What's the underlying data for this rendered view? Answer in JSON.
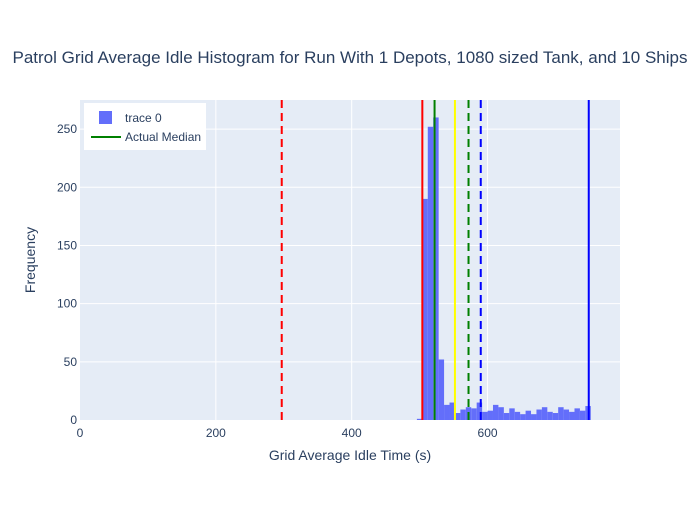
{
  "chart_data": {
    "type": "bar",
    "title": "Patrol Grid Average Idle Histogram for Run With 1 Depots, 1080 sized Tank, and 10 Ships",
    "xlabel": "Grid Average Idle Time (s)",
    "ylabel": "Frequency",
    "xlim": [
      0,
      795
    ],
    "ylim": [
      0,
      275
    ],
    "xticks": [
      0,
      200,
      400,
      600
    ],
    "yticks": [
      0,
      50,
      100,
      150,
      200,
      250
    ],
    "grid": true,
    "legend_placement": "top-left",
    "bin_width": 8,
    "series": [
      {
        "name": "trace 0",
        "color": "#636efa",
        "bins": [
          {
            "x0": 496,
            "value": 1
          },
          {
            "x0": 504,
            "value": 190
          },
          {
            "x0": 512,
            "value": 252
          },
          {
            "x0": 520,
            "value": 260
          },
          {
            "x0": 528,
            "value": 52
          },
          {
            "x0": 536,
            "value": 13
          },
          {
            "x0": 544,
            "value": 15
          },
          {
            "x0": 552,
            "value": 6
          },
          {
            "x0": 560,
            "value": 9
          },
          {
            "x0": 568,
            "value": 11
          },
          {
            "x0": 576,
            "value": 10
          },
          {
            "x0": 584,
            "value": 15
          },
          {
            "x0": 592,
            "value": 7
          },
          {
            "x0": 600,
            "value": 8
          },
          {
            "x0": 608,
            "value": 13
          },
          {
            "x0": 616,
            "value": 11
          },
          {
            "x0": 624,
            "value": 6
          },
          {
            "x0": 632,
            "value": 10
          },
          {
            "x0": 640,
            "value": 7
          },
          {
            "x0": 648,
            "value": 5
          },
          {
            "x0": 656,
            "value": 8
          },
          {
            "x0": 664,
            "value": 5
          },
          {
            "x0": 672,
            "value": 9
          },
          {
            "x0": 680,
            "value": 11
          },
          {
            "x0": 688,
            "value": 7
          },
          {
            "x0": 696,
            "value": 6
          },
          {
            "x0": 704,
            "value": 11
          },
          {
            "x0": 712,
            "value": 9
          },
          {
            "x0": 720,
            "value": 7
          },
          {
            "x0": 728,
            "value": 10
          },
          {
            "x0": 736,
            "value": 8
          },
          {
            "x0": 744,
            "value": 12
          }
        ]
      }
    ],
    "vlines": [
      {
        "x": 297,
        "color": "#ff0000",
        "dash": "dash"
      },
      {
        "x": 504,
        "color": "#ff0000",
        "dash": "solid"
      },
      {
        "x": 522,
        "color": "#008000",
        "dash": "solid"
      },
      {
        "x": 552,
        "color": "#ffff00",
        "dash": "solid"
      },
      {
        "x": 572,
        "color": "#008000",
        "dash": "dash"
      },
      {
        "x": 590,
        "color": "#0000ff",
        "dash": "dash"
      },
      {
        "x": 749,
        "color": "#0000ff",
        "dash": "solid"
      }
    ],
    "legend": [
      {
        "label": "trace 0",
        "kind": "bar",
        "color": "#636efa"
      },
      {
        "label": "Actual Median",
        "kind": "line",
        "color": "#008000"
      }
    ]
  }
}
